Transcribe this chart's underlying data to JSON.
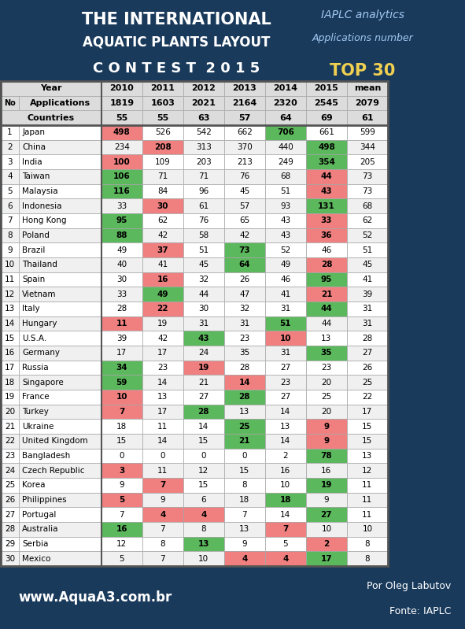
{
  "header_bg": "#1a3a5c",
  "table_bg": "#ffffff",
  "footer_bg": "#1a3a5c",
  "col_headers": [
    "Year",
    "2010",
    "2011",
    "2012",
    "2013",
    "2014",
    "2015",
    "mean"
  ],
  "row1_label": "Applications",
  "row1_vals": [
    "1819",
    "1603",
    "2021",
    "2164",
    "2320",
    "2545",
    "2079"
  ],
  "row2_label": "Countries",
  "row2_vals": [
    "55",
    "55",
    "63",
    "57",
    "64",
    "69",
    "61"
  ],
  "countries": [
    "Japan",
    "China",
    "India",
    "Taiwan",
    "Malaysia",
    "Indonesia",
    "Hong Kong",
    "Poland",
    "Brazil",
    "Thailand",
    "Spain",
    "Vietnam",
    "Italy",
    "Hungary",
    "U.S.A.",
    "Germany",
    "Russia",
    "Singapore",
    "France",
    "Turkey",
    "Ukraine",
    "United Kingdom",
    "Bangladesh",
    "Czech Republic",
    "Korea",
    "Philippines",
    "Portugal",
    "Australia",
    "Serbia",
    "Mexico"
  ],
  "values": [
    [
      498,
      526,
      542,
      662,
      706,
      661,
      599
    ],
    [
      234,
      208,
      313,
      370,
      440,
      498,
      344
    ],
    [
      100,
      109,
      203,
      213,
      249,
      354,
      205
    ],
    [
      106,
      71,
      71,
      76,
      68,
      44,
      73
    ],
    [
      116,
      84,
      96,
      45,
      51,
      43,
      73
    ],
    [
      33,
      30,
      61,
      57,
      93,
      131,
      68
    ],
    [
      95,
      62,
      76,
      65,
      43,
      33,
      62
    ],
    [
      88,
      42,
      58,
      42,
      43,
      36,
      52
    ],
    [
      49,
      37,
      51,
      73,
      52,
      46,
      51
    ],
    [
      40,
      41,
      45,
      64,
      49,
      28,
      45
    ],
    [
      30,
      16,
      32,
      26,
      46,
      95,
      41
    ],
    [
      33,
      49,
      44,
      47,
      41,
      21,
      39
    ],
    [
      28,
      22,
      30,
      32,
      31,
      44,
      31
    ],
    [
      11,
      19,
      31,
      31,
      51,
      44,
      31
    ],
    [
      39,
      42,
      43,
      23,
      10,
      13,
      28
    ],
    [
      17,
      17,
      24,
      35,
      31,
      35,
      27
    ],
    [
      34,
      23,
      19,
      28,
      27,
      23,
      26
    ],
    [
      59,
      14,
      21,
      14,
      23,
      20,
      25
    ],
    [
      10,
      13,
      27,
      28,
      27,
      25,
      22
    ],
    [
      7,
      17,
      28,
      13,
      14,
      20,
      17
    ],
    [
      18,
      11,
      14,
      25,
      13,
      9,
      15
    ],
    [
      15,
      14,
      15,
      21,
      14,
      9,
      15
    ],
    [
      0,
      0,
      0,
      0,
      2,
      78,
      13
    ],
    [
      3,
      11,
      12,
      15,
      16,
      16,
      12
    ],
    [
      9,
      7,
      15,
      8,
      10,
      19,
      11
    ],
    [
      5,
      9,
      6,
      18,
      18,
      9,
      11
    ],
    [
      7,
      4,
      4,
      7,
      14,
      27,
      11
    ],
    [
      16,
      7,
      8,
      13,
      7,
      10,
      10
    ],
    [
      12,
      8,
      13,
      9,
      5,
      2,
      8
    ],
    [
      5,
      7,
      10,
      4,
      4,
      17,
      8
    ]
  ],
  "cell_colors": [
    [
      "red",
      "none",
      "none",
      "none",
      "green",
      "none",
      "none"
    ],
    [
      "none",
      "red",
      "none",
      "none",
      "none",
      "green",
      "none"
    ],
    [
      "red",
      "none",
      "none",
      "none",
      "none",
      "green",
      "none"
    ],
    [
      "green",
      "none",
      "none",
      "none",
      "none",
      "red",
      "none"
    ],
    [
      "green",
      "none",
      "none",
      "none",
      "none",
      "red",
      "none"
    ],
    [
      "none",
      "red",
      "none",
      "none",
      "none",
      "green",
      "none"
    ],
    [
      "green",
      "none",
      "none",
      "none",
      "none",
      "red",
      "none"
    ],
    [
      "green",
      "none",
      "none",
      "none",
      "none",
      "red",
      "none"
    ],
    [
      "none",
      "red",
      "none",
      "green",
      "none",
      "none",
      "none"
    ],
    [
      "none",
      "none",
      "none",
      "green",
      "none",
      "red",
      "none"
    ],
    [
      "none",
      "red",
      "none",
      "none",
      "none",
      "green",
      "none"
    ],
    [
      "none",
      "green",
      "none",
      "none",
      "none",
      "red",
      "none"
    ],
    [
      "none",
      "red",
      "none",
      "none",
      "none",
      "green",
      "none"
    ],
    [
      "red",
      "none",
      "none",
      "none",
      "green",
      "none",
      "none"
    ],
    [
      "none",
      "none",
      "green",
      "none",
      "red",
      "none",
      "none"
    ],
    [
      "none",
      "none",
      "none",
      "none",
      "none",
      "green",
      "none"
    ],
    [
      "green",
      "none",
      "red",
      "none",
      "none",
      "none",
      "none"
    ],
    [
      "green",
      "none",
      "none",
      "red",
      "none",
      "none",
      "none"
    ],
    [
      "red",
      "none",
      "none",
      "green",
      "none",
      "none",
      "none"
    ],
    [
      "red",
      "none",
      "green",
      "none",
      "none",
      "none",
      "none"
    ],
    [
      "none",
      "none",
      "none",
      "green",
      "none",
      "red",
      "none"
    ],
    [
      "none",
      "none",
      "none",
      "green",
      "none",
      "red",
      "none"
    ],
    [
      "none",
      "none",
      "none",
      "none",
      "none",
      "green",
      "none"
    ],
    [
      "red",
      "none",
      "none",
      "none",
      "none",
      "none",
      "none"
    ],
    [
      "none",
      "red",
      "none",
      "none",
      "none",
      "green",
      "none"
    ],
    [
      "red",
      "none",
      "none",
      "none",
      "green",
      "none",
      "none"
    ],
    [
      "none",
      "red",
      "red",
      "none",
      "none",
      "green",
      "none"
    ],
    [
      "green",
      "none",
      "none",
      "none",
      "red",
      "none",
      "none"
    ],
    [
      "none",
      "none",
      "green",
      "none",
      "none",
      "red",
      "none"
    ],
    [
      "none",
      "none",
      "none",
      "red",
      "red",
      "green",
      "none"
    ]
  ],
  "green_color": "#5cb85c",
  "red_color": "#f08080",
  "website": "www.AquaA3.com.br",
  "credit1": "Por Oleg Labutov",
  "credit2": "Fonte: IAPLC"
}
